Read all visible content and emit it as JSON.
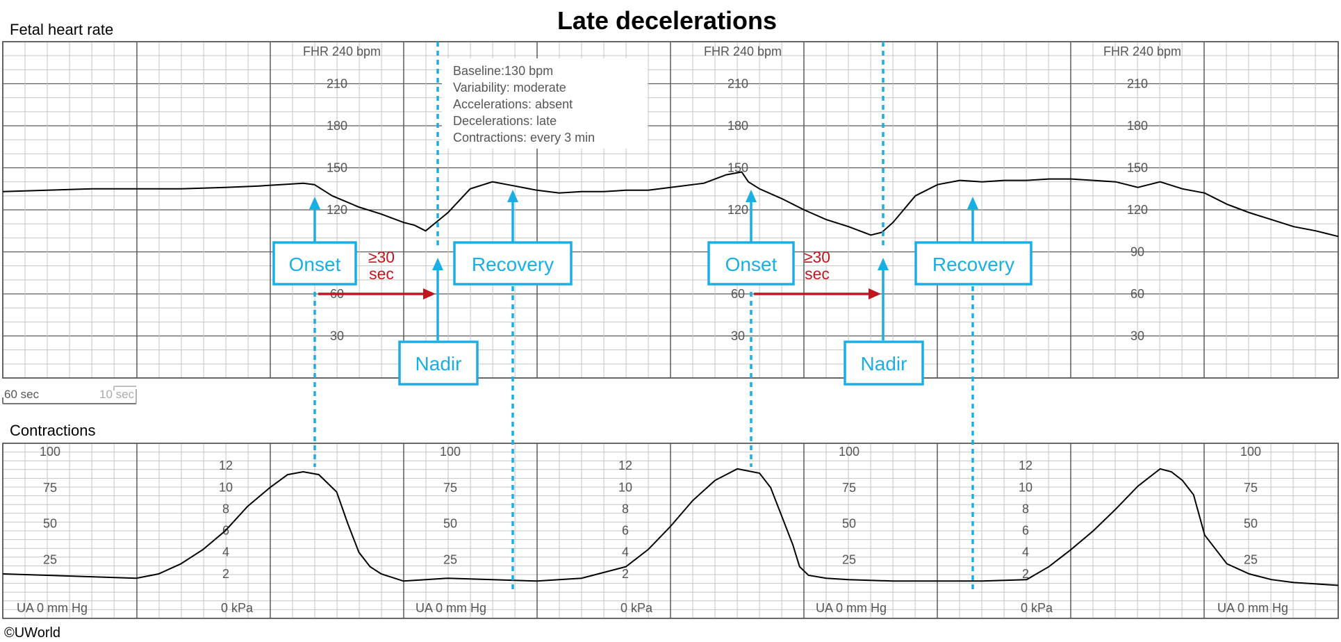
{
  "title": "Late decelerations",
  "copyright": "©UWorld",
  "colors": {
    "accent": "#1aaee5",
    "arrow": "#c0161f",
    "trace": "#000000",
    "grid_major": "#5a5a5a",
    "grid_minor": "#c4c4c4"
  },
  "info_box": {
    "lines": [
      "Baseline:130 bpm",
      "Variability: moderate",
      "Accelerations: absent",
      "Decelerations: late",
      "Contractions: every 3 min"
    ]
  },
  "annotations": {
    "onset": "Onset",
    "nadir": "Nadir",
    "recovery": "Recovery",
    "lag_top": "≥30",
    "lag_bottom": "sec"
  },
  "scale_bar": {
    "major": "60 sec",
    "minor": "10 sec"
  },
  "chart_data": [
    {
      "type": "line",
      "title": "Fetal heart rate",
      "scale_label": "FHR 240 bpm",
      "ylim": [
        0,
        240
      ],
      "yticks": [
        30,
        60,
        90,
        120,
        150,
        180,
        210
      ],
      "x_unit": "sec",
      "xlim": [
        0,
        600
      ],
      "series": [
        {
          "x": [
            0,
            20,
            40,
            60,
            80,
            100,
            115,
            125,
            135,
            140,
            148,
            160,
            170,
            175,
            180,
            185,
            190,
            200,
            210,
            220,
            230,
            240,
            250,
            260,
            270,
            280,
            290,
            300,
            315,
            325,
            332,
            335,
            340,
            350,
            360,
            370,
            380,
            390,
            395,
            400,
            410,
            420,
            430,
            440,
            450,
            460,
            470,
            480,
            490,
            500,
            510,
            520,
            530,
            540,
            550,
            560,
            570,
            580,
            590,
            600
          ],
          "y": [
            133,
            134,
            135,
            135,
            135,
            136,
            137,
            138,
            139,
            138,
            130,
            122,
            117,
            114,
            111,
            109,
            105,
            118,
            135,
            140,
            137,
            134,
            132,
            133,
            133,
            134,
            134,
            136,
            139,
            145,
            147,
            140,
            135,
            128,
            120,
            113,
            108,
            102,
            104,
            111,
            130,
            138,
            141,
            140,
            141,
            141,
            142,
            142,
            141,
            140,
            136,
            140,
            135,
            132,
            124,
            118,
            113,
            108,
            105,
            101
          ]
        }
      ]
    },
    {
      "type": "line",
      "title": "Contractions",
      "y_unit": "mm Hg",
      "ylim": [
        0,
        100
      ],
      "yticks": [
        25,
        50,
        75,
        100
      ],
      "secondary_y_unit": "kPa",
      "secondary_ylim": [
        0,
        13.3
      ],
      "secondary_yticks": [
        2,
        4,
        6,
        8,
        10,
        12
      ],
      "baseline_labels": [
        "UA  0 mm Hg",
        "0 kPa",
        "UA  0 mm Hg",
        "0 kPa",
        "UA  0 mm Hg",
        "0 kPa",
        "UA  0 mm Hg"
      ],
      "x_unit": "sec",
      "xlim": [
        0,
        600
      ],
      "series": [
        {
          "x": [
            0,
            20,
            40,
            60,
            70,
            80,
            90,
            100,
            110,
            120,
            128,
            135,
            142,
            150,
            155,
            160,
            165,
            170,
            180,
            190,
            200,
            220,
            240,
            260,
            280,
            290,
            300,
            310,
            320,
            330,
            340,
            345,
            350,
            355,
            358,
            362,
            370,
            380,
            400,
            420,
            440,
            460,
            470,
            480,
            490,
            500,
            510,
            520,
            525,
            530,
            535,
            540,
            550,
            560,
            570,
            580,
            590,
            600
          ],
          "y": [
            15,
            14,
            13,
            12,
            15,
            22,
            32,
            45,
            62,
            75,
            84,
            86,
            84,
            72,
            50,
            30,
            20,
            15,
            10,
            11,
            12,
            11,
            10,
            12,
            20,
            32,
            48,
            66,
            80,
            88,
            85,
            75,
            55,
            35,
            20,
            14,
            12,
            11,
            10,
            10,
            10,
            11,
            20,
            32,
            45,
            60,
            76,
            88,
            86,
            80,
            70,
            42,
            22,
            15,
            11,
            9,
            8,
            7
          ]
        }
      ]
    }
  ]
}
